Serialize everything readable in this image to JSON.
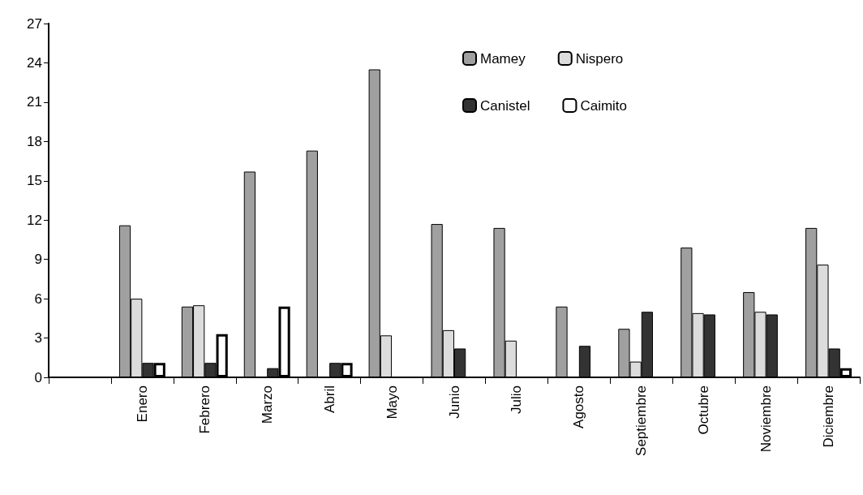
{
  "chart_data": {
    "type": "bar",
    "categories": [
      null,
      "Enero",
      "Febrero",
      "Marzo",
      "Abril",
      "Mayo",
      "Junio",
      "Julio",
      "Agosto",
      "Septiembre",
      "Octubre",
      "Noviembre",
      "Diciembre"
    ],
    "series": [
      {
        "name": "Mamey",
        "color": "#a0a0a0",
        "values": [
          null,
          11.6,
          5.4,
          15.7,
          17.3,
          23.5,
          11.7,
          11.4,
          5.4,
          3.7,
          9.9,
          6.5,
          11.4
        ]
      },
      {
        "name": "Nispero",
        "color": "#dcdcdc",
        "values": [
          null,
          6.0,
          5.5,
          null,
          null,
          3.2,
          3.6,
          2.8,
          null,
          1.2,
          4.9,
          5.0,
          8.6
        ]
      },
      {
        "name": "Canistel",
        "color": "#333333",
        "values": [
          null,
          1.1,
          1.1,
          0.7,
          1.1,
          null,
          2.2,
          null,
          2.4,
          5.0,
          4.8,
          4.8,
          2.2
        ]
      },
      {
        "name": "Caimito",
        "color": "#ffffff",
        "values": [
          null,
          1.1,
          3.3,
          5.4,
          1.1,
          null,
          null,
          null,
          null,
          null,
          null,
          null,
          0.7
        ]
      }
    ],
    "ylim": [
      0,
      27
    ],
    "yticks": [
      0,
      3,
      6,
      9,
      12,
      15,
      18,
      21,
      24,
      27
    ],
    "grid": false,
    "legend": "top right"
  }
}
